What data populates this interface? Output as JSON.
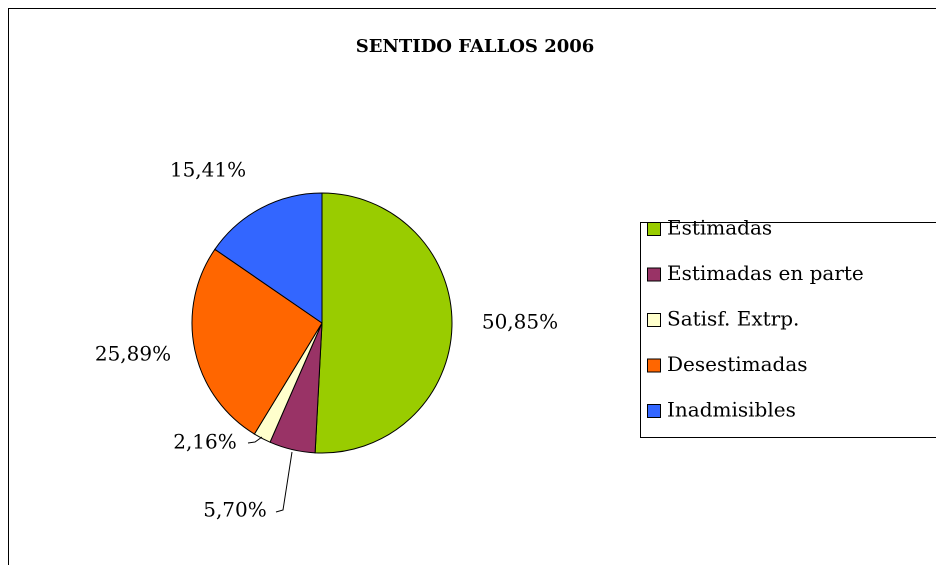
{
  "chart_data": {
    "type": "pie",
    "title": "SENTIDO FALLOS 2006",
    "categories": [
      "Estimadas",
      "Estimadas en parte",
      "Satisf. Extrp.",
      "Desestimadas",
      "Inadmisibles"
    ],
    "values": [
      50.85,
      5.7,
      2.16,
      25.89,
      15.41
    ],
    "value_labels": [
      "50,85%",
      "5,70%",
      "2,16%",
      "25,89%",
      "15,41%"
    ],
    "colors": [
      "#99cc00",
      "#993366",
      "#ffffcc",
      "#ff6600",
      "#3366ff"
    ],
    "legend": "right"
  }
}
